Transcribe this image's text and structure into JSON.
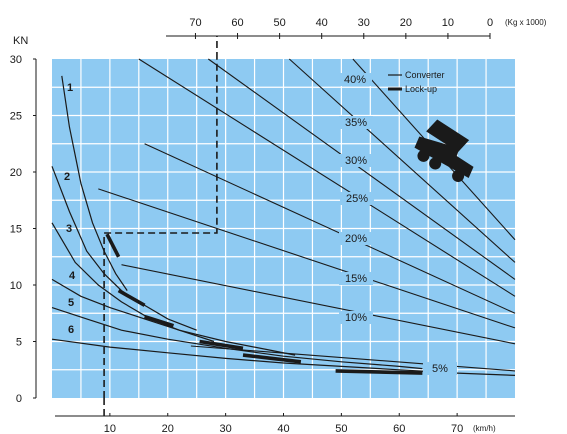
{
  "chart_data": {
    "type": "line",
    "title": "",
    "ylabel": "KN",
    "xlabel": "(km/h)",
    "top_axis_unit": "(Kg x 1000)",
    "xlim": [
      0,
      80
    ],
    "ylim": [
      0,
      30
    ],
    "top_axis_range": [
      77,
      0
    ],
    "x_ticks": [
      10,
      20,
      30,
      40,
      50,
      60,
      70
    ],
    "x_tick_labels": [
      "10",
      "20",
      "30",
      "40",
      "50",
      "60",
      "70"
    ],
    "y_ticks": [
      0,
      5,
      10,
      15,
      20,
      25,
      30
    ],
    "y_tick_labels": [
      "0",
      "5",
      "10",
      "15",
      "20",
      "25",
      "30"
    ],
    "top_ticks": [
      70,
      60,
      50,
      40,
      30,
      20,
      10,
      0
    ],
    "top_tick_labels": [
      "70",
      "60",
      "50",
      "40",
      "30",
      "20",
      "10",
      "0"
    ],
    "grid": true,
    "legend": {
      "placement": "top-right",
      "entries": [
        {
          "label": "Converter",
          "style": "thin"
        },
        {
          "label": "Lock-up",
          "style": "thick"
        }
      ]
    },
    "gear_labels": [
      "1",
      "2",
      "3",
      "4",
      "5",
      "6"
    ],
    "grade_labels": [
      "40%",
      "35%",
      "30%",
      "25%",
      "20%",
      "15%",
      "10%",
      "5%"
    ],
    "rimpull_curves": [
      {
        "name": "1",
        "x": [
          1.7,
          3,
          5,
          7,
          9,
          11,
          13
        ],
        "y": [
          28.5,
          24,
          19,
          15.5,
          13,
          11,
          9.5
        ]
      },
      {
        "name": "2",
        "x": [
          0,
          3,
          6,
          9,
          12,
          15,
          20,
          25
        ],
        "y": [
          20.5,
          16.5,
          13,
          11,
          9.5,
          8.5,
          7,
          6
        ]
      },
      {
        "name": "3",
        "x": [
          0,
          4,
          8,
          12,
          17,
          22,
          28
        ],
        "y": [
          15.5,
          12,
          10,
          8.5,
          7,
          6,
          5
        ]
      },
      {
        "name": "4",
        "x": [
          0,
          5,
          10,
          16,
          22,
          30,
          38,
          42
        ],
        "y": [
          10.5,
          9,
          8,
          7,
          6,
          5,
          4.2,
          3.8
        ]
      },
      {
        "name": "5",
        "x": [
          0,
          6,
          12,
          20,
          30,
          40,
          50,
          60,
          64
        ],
        "y": [
          8,
          7,
          6,
          5.2,
          4.4,
          3.7,
          3.2,
          2.8,
          2.6
        ]
      },
      {
        "name": "6",
        "x": [
          0,
          10,
          20,
          30,
          40,
          50,
          60,
          70,
          80
        ],
        "y": [
          5.2,
          4.5,
          4,
          3.5,
          3.1,
          2.8,
          2.5,
          2.2,
          2
        ]
      }
    ],
    "lockup_segments": [
      {
        "name": "1",
        "x": [
          9.5,
          11.5
        ],
        "y": [
          14.5,
          12.5
        ]
      },
      {
        "name": "2",
        "x": [
          11.5,
          16
        ],
        "y": [
          9.5,
          8.2
        ]
      },
      {
        "name": "3",
        "x": [
          16,
          21
        ],
        "y": [
          7.2,
          6.4
        ]
      },
      {
        "name": "4",
        "x": [
          25.5,
          33
        ],
        "y": [
          5,
          4.4
        ]
      },
      {
        "name": "5",
        "x": [
          33,
          43
        ],
        "y": [
          3.8,
          3.2
        ]
      },
      {
        "name": "6",
        "x": [
          49,
          64
        ],
        "y": [
          2.4,
          2.2
        ]
      }
    ],
    "grade_lines": [
      {
        "name": "40%",
        "x": [
          52,
          80
        ],
        "y": [
          30,
          14
        ]
      },
      {
        "name": "35%",
        "x": [
          41,
          80
        ],
        "y": [
          30,
          12
        ]
      },
      {
        "name": "30%",
        "x": [
          27,
          80
        ],
        "y": [
          30,
          10.5
        ]
      },
      {
        "name": "25%",
        "x": [
          15,
          80
        ],
        "y": [
          30,
          9
        ]
      },
      {
        "name": "20%",
        "x": [
          16,
          80
        ],
        "y": [
          22.5,
          7.5
        ]
      },
      {
        "name": "15%",
        "x": [
          8,
          80
        ],
        "y": [
          18.5,
          6.2
        ]
      },
      {
        "name": "10%",
        "x": [
          12,
          80
        ],
        "y": [
          11.8,
          4.8
        ]
      },
      {
        "name": "5%",
        "x": [
          24,
          80
        ],
        "y": [
          4.6,
          2.4
        ]
      }
    ],
    "example_path": {
      "x": [
        9,
        9,
        28.5,
        28.5
      ],
      "y": [
        0,
        14.6,
        14.6,
        30
      ]
    }
  },
  "colors": {
    "plot_background": "#8ecaf2",
    "grid": "#ffffff",
    "ink": "#1a1a1a"
  },
  "icons": {
    "truck": "dump-truck-icon"
  }
}
